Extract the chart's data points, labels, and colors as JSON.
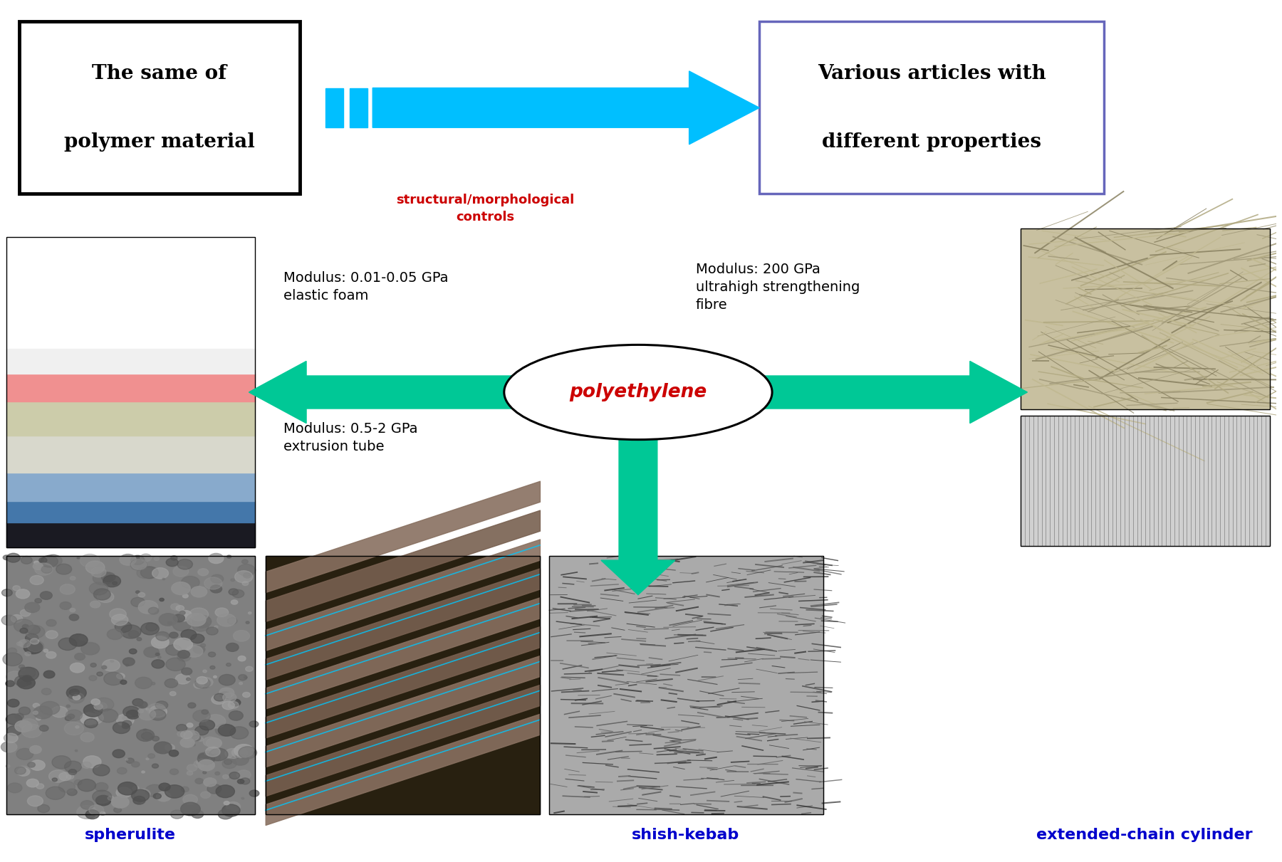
{
  "title_left": "The same of\n\npolymer material",
  "title_right": "Various articles with\n\ndifferent properties",
  "arrow_label_line1": "structural/morphological",
  "arrow_label_line2": "controls",
  "center_label": "polyethylene",
  "left_top_label_line1": "Modulus: 0.01-0.05 GPa",
  "left_top_label_line2": "elastic foam",
  "right_top_label_line1": "Modulus: 200 GPa",
  "right_top_label_line2": "ultrahigh strengthening",
  "right_top_label_line3": "fibre",
  "bottom_label_line1": "Modulus: 0.5-2 GPa",
  "bottom_label_line2": "extrusion tube",
  "caption_left": "spherulite",
  "caption_center": "shish-kebab",
  "caption_right": "extended-chain cylinder",
  "cyan_arrow_color": "#00C0FF",
  "green_arrow_color": "#00C896",
  "red_text_color": "#CC0000",
  "blue_caption_color": "#0000CC",
  "box_left_edge": "#000000",
  "box_right_edge": "#6666BB",
  "bg_color": "#FFFFFF",
  "fig_width": 18.0,
  "fig_height": 12.11,
  "dpi": 100
}
